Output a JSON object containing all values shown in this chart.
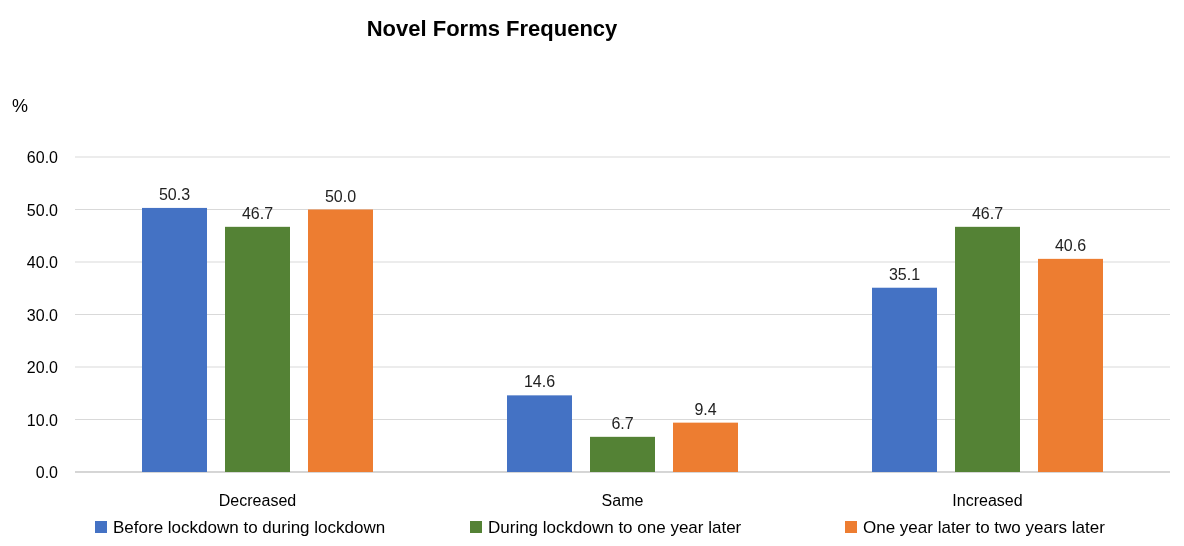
{
  "chart_data": {
    "type": "bar",
    "title": "Novel Forms Frequency",
    "ylabel": "%",
    "categories": [
      "Decreased",
      "Same",
      "Increased"
    ],
    "series": [
      {
        "name": "Before lockdown to during lockdown",
        "color": "#4472c4",
        "values": [
          50.3,
          14.6,
          35.1
        ],
        "value_labels": [
          "50.3",
          "14.6",
          "35.1"
        ]
      },
      {
        "name": "During lockdown to one year later",
        "color": "#548235",
        "values": [
          46.7,
          6.7,
          46.7
        ],
        "value_labels": [
          "46.7",
          "6.7",
          "46.7"
        ]
      },
      {
        "name": "One year later to two years later",
        "color": "#ed7d31",
        "values": [
          50.0,
          9.4,
          40.6
        ],
        "value_labels": [
          "50.0",
          "9.4",
          "40.6"
        ]
      }
    ],
    "ylim": [
      0,
      60
    ],
    "yticks": [
      {
        "value": 0,
        "label": "0.0"
      },
      {
        "value": 10,
        "label": "10.0"
      },
      {
        "value": 20,
        "label": "20.0"
      },
      {
        "value": 30,
        "label": "30.0"
      },
      {
        "value": 40,
        "label": "40.0"
      },
      {
        "value": 50,
        "label": "50.0"
      },
      {
        "value": 60,
        "label": "60.0"
      }
    ],
    "grid": "y",
    "legend": "bottom"
  }
}
